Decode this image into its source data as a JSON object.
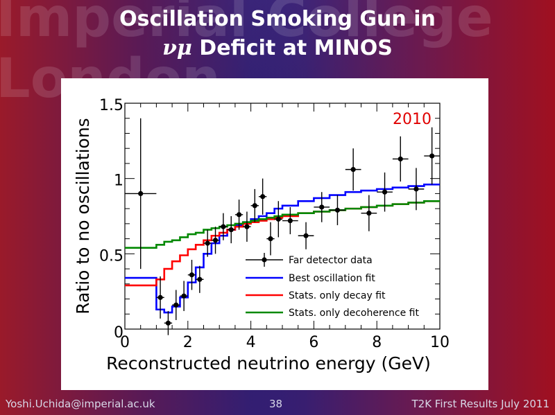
{
  "slide": {
    "watermark": "Imperial College\nLondon",
    "title_line1": "Oscillation Smoking Gun in",
    "title_symbol": "νμ",
    "title_line2_rest": " Deficit at MINOS",
    "footer_left": "Yoshi.Uchida@imperial.ac.uk",
    "footer_page": "38",
    "footer_right": "T2K First Results July 2011"
  },
  "chart_data": {
    "type": "line",
    "annotation": "2010",
    "xlabel": "Reconstructed neutrino energy (GeV)",
    "ylabel": "Ratio to no oscillations",
    "xlim": [
      0,
      10
    ],
    "ylim": [
      0,
      1.5
    ],
    "xticks": [
      0,
      2,
      4,
      6,
      8,
      10
    ],
    "yticks": [
      0,
      0.5,
      1,
      1.5
    ],
    "xtick_labels": [
      "0",
      "2",
      "4",
      "6",
      "8",
      "10"
    ],
    "ytick_labels": [
      "0",
      "0.5",
      "1",
      "1.5"
    ],
    "legend_position": "bottom-right",
    "data_points": {
      "name": "Far detector data",
      "points": [
        {
          "x": 0.5,
          "y": 0.9,
          "xerr": 0.5,
          "yerr": 0.5
        },
        {
          "x": 1.125,
          "y": 0.21,
          "xerr": 0.125,
          "yerr": 0.14
        },
        {
          "x": 1.375,
          "y": 0.04,
          "xerr": 0.125,
          "yerr": 0.08
        },
        {
          "x": 1.625,
          "y": 0.16,
          "xerr": 0.125,
          "yerr": 0.1
        },
        {
          "x": 1.875,
          "y": 0.22,
          "xerr": 0.125,
          "yerr": 0.1
        },
        {
          "x": 2.125,
          "y": 0.36,
          "xerr": 0.125,
          "yerr": 0.1
        },
        {
          "x": 2.375,
          "y": 0.33,
          "xerr": 0.125,
          "yerr": 0.09
        },
        {
          "x": 2.625,
          "y": 0.57,
          "xerr": 0.125,
          "yerr": 0.09
        },
        {
          "x": 2.875,
          "y": 0.59,
          "xerr": 0.125,
          "yerr": 0.09
        },
        {
          "x": 3.125,
          "y": 0.68,
          "xerr": 0.125,
          "yerr": 0.09
        },
        {
          "x": 3.375,
          "y": 0.66,
          "xerr": 0.125,
          "yerr": 0.09
        },
        {
          "x": 3.625,
          "y": 0.76,
          "xerr": 0.125,
          "yerr": 0.1
        },
        {
          "x": 3.875,
          "y": 0.68,
          "xerr": 0.125,
          "yerr": 0.1
        },
        {
          "x": 4.125,
          "y": 0.82,
          "xerr": 0.125,
          "yerr": 0.11
        },
        {
          "x": 4.375,
          "y": 0.88,
          "xerr": 0.125,
          "yerr": 0.12
        },
        {
          "x": 4.625,
          "y": 0.6,
          "xerr": 0.125,
          "yerr": 0.11
        },
        {
          "x": 4.875,
          "y": 0.73,
          "xerr": 0.125,
          "yerr": 0.12
        },
        {
          "x": 5.25,
          "y": 0.72,
          "xerr": 0.25,
          "yerr": 0.09
        },
        {
          "x": 5.75,
          "y": 0.62,
          "xerr": 0.25,
          "yerr": 0.09
        },
        {
          "x": 6.25,
          "y": 0.81,
          "xerr": 0.25,
          "yerr": 0.1
        },
        {
          "x": 6.75,
          "y": 0.79,
          "xerr": 0.25,
          "yerr": 0.1
        },
        {
          "x": 7.25,
          "y": 1.06,
          "xerr": 0.25,
          "yerr": 0.14
        },
        {
          "x": 7.75,
          "y": 0.77,
          "xerr": 0.25,
          "yerr": 0.12
        },
        {
          "x": 8.25,
          "y": 0.91,
          "xerr": 0.25,
          "yerr": 0.13
        },
        {
          "x": 8.75,
          "y": 1.13,
          "xerr": 0.25,
          "yerr": 0.15
        },
        {
          "x": 9.25,
          "y": 0.93,
          "xerr": 0.25,
          "yerr": 0.14
        },
        {
          "x": 9.75,
          "y": 1.15,
          "xerr": 0.25,
          "yerr": 0.19
        }
      ]
    },
    "series": [
      {
        "name": "Best oscillation fit",
        "color": "#0000ff",
        "x": [
          0,
          0.5,
          1.0,
          1.25,
          1.5,
          1.75,
          2.0,
          2.25,
          2.5,
          2.75,
          3.0,
          3.25,
          3.5,
          3.75,
          4.0,
          4.25,
          4.5,
          4.75,
          5.0,
          5.5,
          6.0,
          6.5,
          7.0,
          7.5,
          8.0,
          8.5,
          9.0,
          9.5,
          10.0
        ],
        "y": [
          0.34,
          0.34,
          0.13,
          0.11,
          0.15,
          0.21,
          0.31,
          0.41,
          0.5,
          0.57,
          0.62,
          0.66,
          0.69,
          0.71,
          0.73,
          0.75,
          0.77,
          0.8,
          0.82,
          0.85,
          0.87,
          0.89,
          0.91,
          0.92,
          0.93,
          0.94,
          0.95,
          0.96,
          0.96
        ]
      },
      {
        "name": "Stats. only decay fit",
        "color": "#ff0000",
        "x": [
          0,
          0.5,
          1.0,
          1.25,
          1.5,
          1.75,
          2.0,
          2.25,
          2.5,
          2.75,
          3.0,
          3.25,
          3.5,
          3.75,
          4.0,
          4.25,
          4.5,
          4.75,
          5.0,
          5.5,
          6.0,
          6.5,
          7.0,
          7.5,
          8.0,
          8.5,
          9.0,
          9.5,
          10.0
        ],
        "y": [
          0.29,
          0.29,
          0.33,
          0.4,
          0.45,
          0.49,
          0.53,
          0.56,
          0.59,
          0.62,
          0.64,
          0.66,
          0.68,
          0.7,
          0.71,
          0.72,
          0.73,
          0.74,
          0.75,
          0.77,
          0.78,
          0.79,
          0.8,
          0.81,
          0.82,
          0.83,
          0.84,
          0.85,
          0.86
        ]
      },
      {
        "name": "Stats. only decoherence fit",
        "color": "#008800",
        "x": [
          0,
          0.5,
          1.0,
          1.25,
          1.5,
          1.75,
          2.0,
          2.25,
          2.5,
          2.75,
          3.0,
          3.25,
          3.5,
          3.75,
          4.0,
          4.25,
          4.5,
          4.75,
          5.0,
          5.5,
          6.0,
          6.5,
          7.0,
          7.5,
          8.0,
          8.5,
          9.0,
          9.5,
          10.0
        ],
        "y": [
          0.54,
          0.54,
          0.56,
          0.58,
          0.59,
          0.61,
          0.63,
          0.64,
          0.66,
          0.67,
          0.68,
          0.69,
          0.7,
          0.71,
          0.72,
          0.73,
          0.74,
          0.75,
          0.76,
          0.77,
          0.78,
          0.79,
          0.8,
          0.81,
          0.82,
          0.83,
          0.84,
          0.85,
          0.85
        ]
      }
    ]
  }
}
